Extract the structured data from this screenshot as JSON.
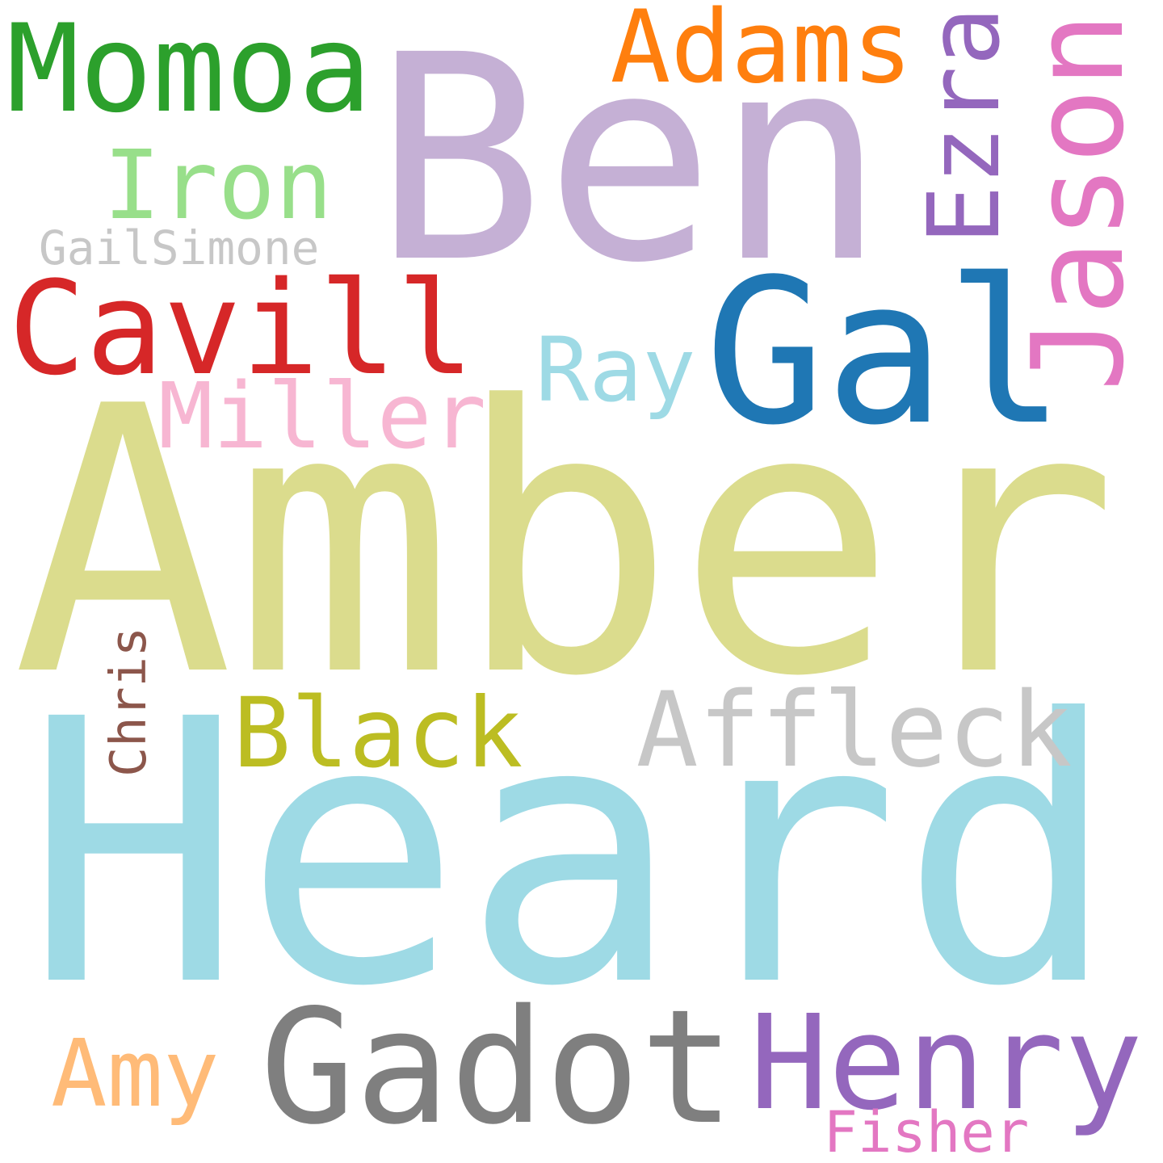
{
  "words": [
    {
      "id": "amber",
      "text": "Amber",
      "color": "#dbdc8d"
    },
    {
      "id": "heard",
      "text": "Heard",
      "color": "#9edae5"
    },
    {
      "id": "ben",
      "text": "Ben",
      "color": "#c5b0d5"
    },
    {
      "id": "gal",
      "text": "Gal",
      "color": "#1f77b4"
    },
    {
      "id": "gadot",
      "text": "Gadot",
      "color": "#7f7f7f"
    },
    {
      "id": "henry",
      "text": "Henry",
      "color": "#9467bd"
    },
    {
      "id": "cavill",
      "text": "Cavill",
      "color": "#d62728"
    },
    {
      "id": "affleck",
      "text": "Affleck",
      "color": "#c7c7c7"
    },
    {
      "id": "momoa",
      "text": "Momoa",
      "color": "#2ca02c"
    },
    {
      "id": "black",
      "text": "Black",
      "color": "#bcbd22"
    },
    {
      "id": "adams",
      "text": "Adams",
      "color": "#ff7f0e"
    },
    {
      "id": "iron",
      "text": "Iron",
      "color": "#98df8a"
    },
    {
      "id": "amy",
      "text": "Amy",
      "color": "#ffbb78"
    },
    {
      "id": "miller",
      "text": "Miller",
      "color": "#f7b6d2"
    },
    {
      "id": "ray",
      "text": "Ray",
      "color": "#9edae5"
    },
    {
      "id": "jason",
      "text": "Jason",
      "color": "#e377c2"
    },
    {
      "id": "ezra",
      "text": "Ezra",
      "color": "#9467bd"
    },
    {
      "id": "chris",
      "text": "Chris",
      "color": "#8c564b"
    },
    {
      "id": "gailsimone",
      "text": "GailSimone",
      "color": "#c7c7c7"
    },
    {
      "id": "fisher",
      "text": "Fisher",
      "color": "#e377c2"
    }
  ]
}
